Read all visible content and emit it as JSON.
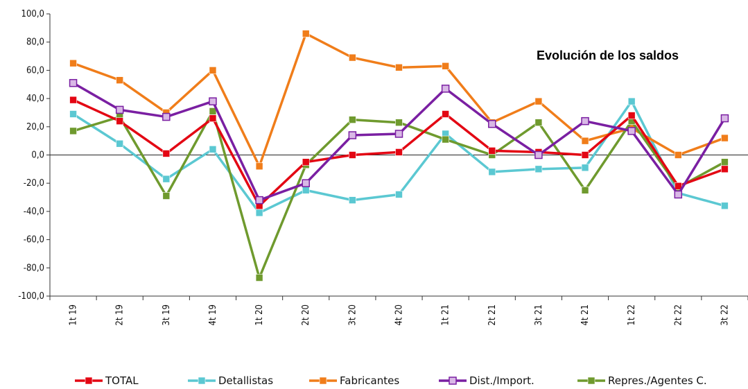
{
  "chart_data": {
    "type": "line",
    "title": "Evolución de los saldos",
    "categories": [
      "1t 19",
      "2t 19",
      "3t 19",
      "4t 19",
      "1t 20",
      "2t 20",
      "3t 20",
      "4t 20",
      "1t 21",
      "2t 21",
      "3t 21",
      "4t 21",
      "1t 22",
      "2t 22",
      "3t 22"
    ],
    "ylim": [
      -100,
      100
    ],
    "yticks": [
      100,
      80,
      60,
      40,
      20,
      0,
      -20,
      -40,
      -60,
      -80,
      -100
    ],
    "ytick_labels": [
      "100,0",
      "80,0",
      "60,0",
      "40,0",
      "20,0",
      "0,0",
      "-20,0",
      "-40,0",
      "-60,0",
      "-80,0",
      "-100,0"
    ],
    "grid": false,
    "legend_position": "bottom",
    "series": [
      {
        "name": "TOTAL",
        "color": "#e30613",
        "marker": "square",
        "values": [
          39,
          24,
          1,
          26,
          -36,
          -5,
          0,
          2,
          29,
          3,
          2,
          0,
          28,
          -22,
          -10
        ]
      },
      {
        "name": "Detallistas",
        "color": "#5bc8d2",
        "marker": "square",
        "values": [
          29,
          8,
          -17,
          4,
          -41,
          -25,
          -32,
          -28,
          15,
          -12,
          -10,
          -9,
          38,
          -27,
          -36
        ]
      },
      {
        "name": "Fabricantes",
        "color": "#f07d1a",
        "marker": "square",
        "values": [
          65,
          53,
          30,
          60,
          -8,
          86,
          69,
          62,
          63,
          23,
          38,
          10,
          19,
          0,
          12
        ]
      },
      {
        "name": "Dist./Import.",
        "color": "#7a1fa2",
        "marker": "square-hollow",
        "values": [
          51,
          32,
          27,
          38,
          -32,
          -20,
          14,
          15,
          47,
          22,
          0,
          24,
          17,
          -28,
          26
        ]
      },
      {
        "name": "Repres./Agentes C.",
        "color": "#6f9a2e",
        "marker": "square",
        "values": [
          17,
          27,
          -29,
          31,
          -87,
          -7,
          25,
          23,
          11,
          0,
          23,
          -25,
          24,
          -23,
          -5
        ]
      }
    ]
  }
}
